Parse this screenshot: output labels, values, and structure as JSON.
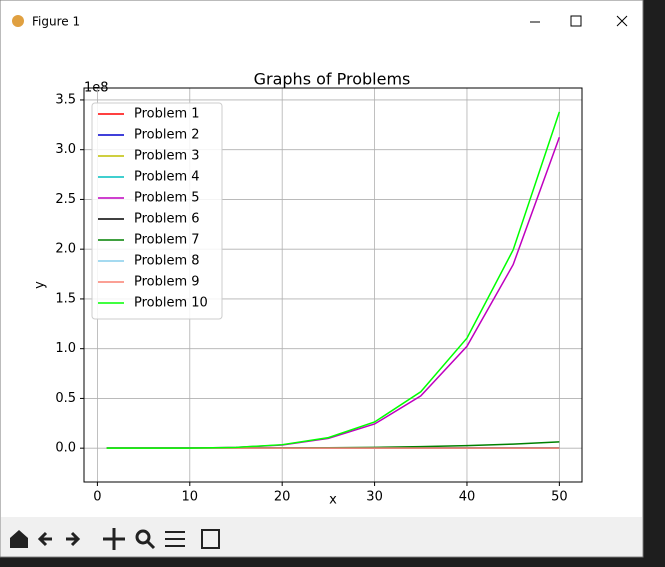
{
  "window": {
    "title": "Figure 1"
  },
  "chart_data": {
    "type": "line",
    "title": "Graphs of Problems",
    "x_label": "x",
    "y_label": "y",
    "offset_text": "1e8",
    "x": [
      1,
      5,
      10,
      15,
      20,
      25,
      30,
      35,
      40,
      45,
      50
    ],
    "series": [
      {
        "name": "Problem 1",
        "color": "#ff0000",
        "values": [
          0,
          0,
          0,
          0,
          0,
          0,
          0,
          0,
          0,
          0,
          0
        ]
      },
      {
        "name": "Problem 2",
        "color": "#0000cd",
        "values": [
          0,
          0,
          0,
          0,
          0,
          0,
          0,
          0,
          0,
          0,
          0
        ]
      },
      {
        "name": "Problem 3",
        "color": "#bfbf00",
        "values": [
          0,
          0,
          0,
          0,
          0,
          0,
          0,
          0,
          0,
          0,
          0
        ]
      },
      {
        "name": "Problem 4",
        "color": "#00bfbf",
        "values": [
          0,
          0,
          0,
          0,
          0,
          0,
          0,
          0,
          0,
          0,
          0
        ]
      },
      {
        "name": "Problem 5",
        "color": "#bf00bf",
        "values": [
          0,
          0,
          0.001,
          0.008,
          0.032,
          0.098,
          0.243,
          0.525,
          1.024,
          1.845,
          3.125
        ]
      },
      {
        "name": "Problem 6",
        "color": "#000000",
        "values": [
          0,
          0,
          0,
          0,
          0,
          0,
          0,
          0,
          0,
          0,
          0
        ]
      },
      {
        "name": "Problem 7",
        "color": "#008000",
        "values": [
          0,
          0,
          0,
          0.001,
          0.002,
          0.004,
          0.008,
          0.015,
          0.026,
          0.041,
          0.063
        ]
      },
      {
        "name": "Problem 8",
        "color": "#87ceeb",
        "values": [
          0,
          0,
          0,
          0,
          0,
          0,
          0,
          0,
          0,
          0,
          0
        ]
      },
      {
        "name": "Problem 9",
        "color": "#fa8072",
        "values": [
          0,
          0,
          0,
          0,
          0,
          0,
          0,
          0,
          0,
          0,
          0
        ]
      },
      {
        "name": "Problem 10",
        "color": "#00ff00",
        "values": [
          0,
          0,
          0.001,
          0.008,
          0.035,
          0.106,
          0.263,
          0.567,
          1.106,
          1.993,
          3.38
        ]
      }
    ],
    "xlim": [
      -1.45,
      52.45
    ],
    "xticks": [
      0,
      10,
      20,
      30,
      40,
      50
    ],
    "ylim": [
      -0.34,
      3.62
    ],
    "yticks": [
      {
        "value": 0,
        "label": "0.0"
      },
      {
        "value": 0.5,
        "label": "0.5"
      },
      {
        "value": 1,
        "label": "1.0"
      },
      {
        "value": 1.5,
        "label": "1.5"
      },
      {
        "value": 2,
        "label": "2.0"
      },
      {
        "value": 2.5,
        "label": "2.5"
      },
      {
        "value": 3,
        "label": "3.0"
      },
      {
        "value": 3.5,
        "label": "3.5"
      }
    ],
    "grid": true,
    "legend": "upper-left"
  }
}
